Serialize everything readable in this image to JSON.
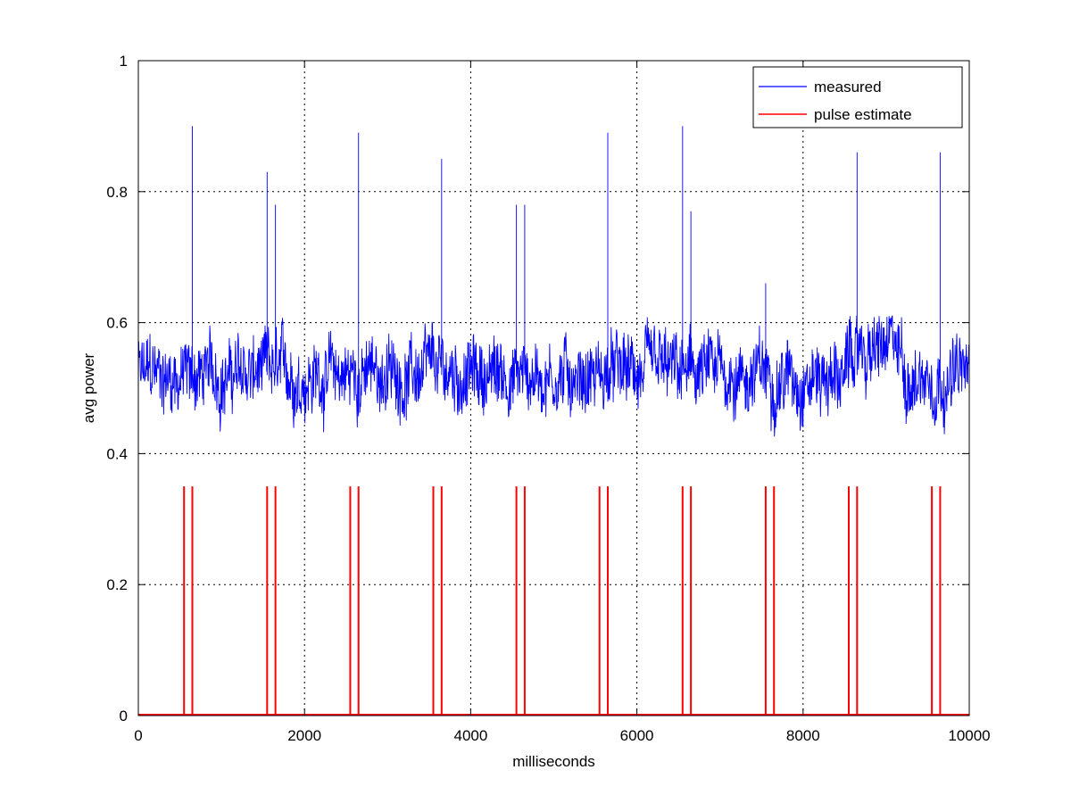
{
  "chart_data": {
    "type": "line",
    "xlabel": "milliseconds",
    "ylabel": "avg power",
    "xlim": [
      0,
      10000
    ],
    "ylim": [
      0,
      1
    ],
    "xticks": [
      0,
      2000,
      4000,
      6000,
      8000,
      10000
    ],
    "yticks": [
      0,
      0.2,
      0.4,
      0.6,
      0.8,
      1
    ],
    "xtick_labels": [
      "0",
      "2000",
      "4000",
      "6000",
      "8000",
      "10000"
    ],
    "ytick_labels": [
      "0",
      "0.2",
      "0.4",
      "0.6",
      "0.8",
      "1"
    ],
    "grid": true,
    "legend": "top-right",
    "series": [
      {
        "name": "measured",
        "color": "#0000ff",
        "baseline_mean": 0.52,
        "noise_min": 0.4,
        "noise_max": 0.61,
        "spikes": [
          {
            "x": 650,
            "y": 0.9
          },
          {
            "x": 1550,
            "y": 0.83
          },
          {
            "x": 1650,
            "y": 0.78
          },
          {
            "x": 2650,
            "y": 0.89
          },
          {
            "x": 3650,
            "y": 0.85
          },
          {
            "x": 4550,
            "y": 0.78
          },
          {
            "x": 4650,
            "y": 0.78
          },
          {
            "x": 5650,
            "y": 0.89
          },
          {
            "x": 6550,
            "y": 0.9
          },
          {
            "x": 6650,
            "y": 0.77
          },
          {
            "x": 7550,
            "y": 0.66
          },
          {
            "x": 8650,
            "y": 0.86
          },
          {
            "x": 9650,
            "y": 0.86
          }
        ]
      },
      {
        "name": "pulse estimate",
        "color": "#ff0000",
        "pulse_height": 0.35,
        "pulses_x": [
          550,
          650,
          1550,
          1650,
          2550,
          2650,
          3550,
          3650,
          4550,
          4650,
          5550,
          5650,
          6550,
          6650,
          7550,
          7650,
          8550,
          8650,
          9550,
          9650
        ]
      }
    ]
  }
}
